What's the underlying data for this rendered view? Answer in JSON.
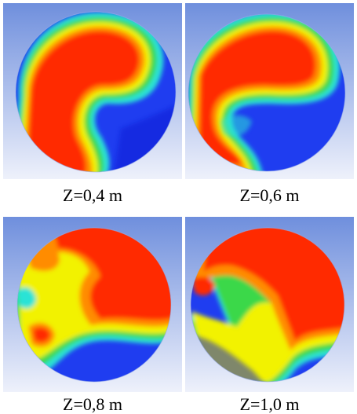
{
  "slices": [
    {
      "label": "Z=0,4 m"
    },
    {
      "label": "Z=0,6 m"
    },
    {
      "label": "Z=0,8 m"
    },
    {
      "label": "Z=1,0 m"
    }
  ],
  "colors": {
    "background_top": "#6f8fdd",
    "background_bottom": "#ecf0fb",
    "red": "#ff2a00",
    "orange": "#ff8c00",
    "yellow": "#f2f200",
    "green": "#3ad84a",
    "cyan": "#2be3d6",
    "blue": "#1f3df0",
    "deep_blue": "#0b1fd6"
  }
}
